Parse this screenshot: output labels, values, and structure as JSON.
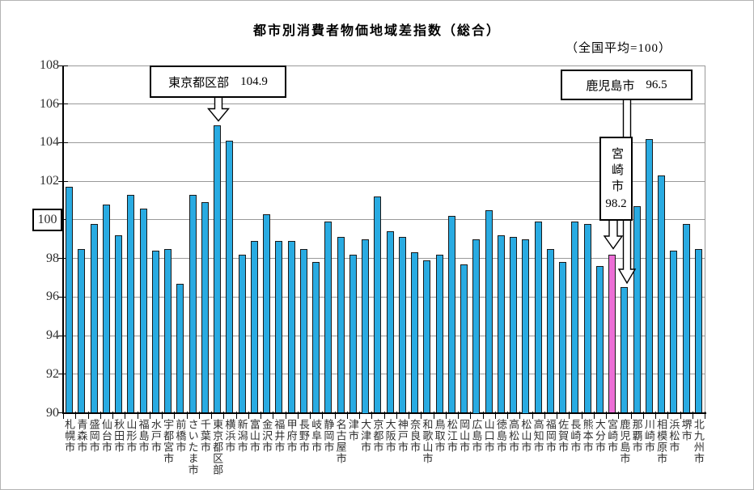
{
  "title": "都市別消費者物価地域差指数（総合）",
  "note": "（全国平均=100）",
  "callouts": {
    "tokyo": {
      "label": "東京都区部",
      "value": "104.9"
    },
    "kagoshima": {
      "label": "鹿児島市",
      "value": "96.5"
    },
    "miyazaki": {
      "label": "宮崎市",
      "value": "98.2"
    }
  },
  "chart_data": {
    "type": "bar",
    "title": "都市別消費者物価地域差指数（総合）",
    "note": "（全国平均=100）",
    "ylabel": "",
    "xlabel": "",
    "ylim": [
      90,
      108
    ],
    "ytick_step": 2,
    "grid": true,
    "bar_color": "#29ABE2",
    "highlight_color": "#EC6ED6",
    "highlight_category": "宮崎市",
    "boxed_ytick": 100,
    "categories": [
      "札幌市",
      "青森市",
      "盛岡市",
      "仙台市",
      "秋田市",
      "山形市",
      "福島市",
      "水戸市",
      "宇都宮市",
      "前橋市",
      "さいたま市",
      "千葉市",
      "東京都区部",
      "横浜市",
      "新潟市",
      "富山市",
      "金沢市",
      "福井市",
      "甲府市",
      "長野市",
      "岐阜市",
      "静岡市",
      "名古屋市",
      "津市",
      "大津市",
      "京都市",
      "大阪市",
      "神戸市",
      "奈良市",
      "和歌山市",
      "鳥取市",
      "松江市",
      "岡山市",
      "広島市",
      "山口市",
      "徳島市",
      "高松市",
      "松山市",
      "高知市",
      "福岡市",
      "佐賀市",
      "長崎市",
      "熊本市",
      "大分市",
      "宮崎市",
      "鹿児島市",
      "那覇市",
      "川崎市",
      "相模原市",
      "浜松市",
      "堺市",
      "北九州市"
    ],
    "values": [
      101.7,
      98.5,
      99.8,
      100.8,
      99.2,
      101.3,
      100.6,
      98.4,
      98.5,
      96.7,
      101.3,
      100.9,
      104.9,
      104.1,
      98.2,
      98.9,
      100.3,
      98.9,
      98.9,
      98.5,
      97.8,
      99.9,
      99.1,
      98.2,
      99.0,
      101.2,
      99.4,
      99.1,
      98.3,
      97.9,
      98.2,
      100.2,
      97.7,
      99.0,
      100.5,
      99.2,
      99.1,
      99.0,
      99.9,
      98.5,
      97.8,
      99.9,
      99.8,
      97.6,
      98.2,
      96.5,
      100.7,
      104.2,
      102.3,
      98.4,
      99.8,
      98.5
    ],
    "annotations": [
      {
        "category": "東京都区部",
        "value": 104.9
      },
      {
        "category": "宮崎市",
        "value": 98.2
      },
      {
        "category": "鹿児島市",
        "value": 96.5
      }
    ]
  }
}
